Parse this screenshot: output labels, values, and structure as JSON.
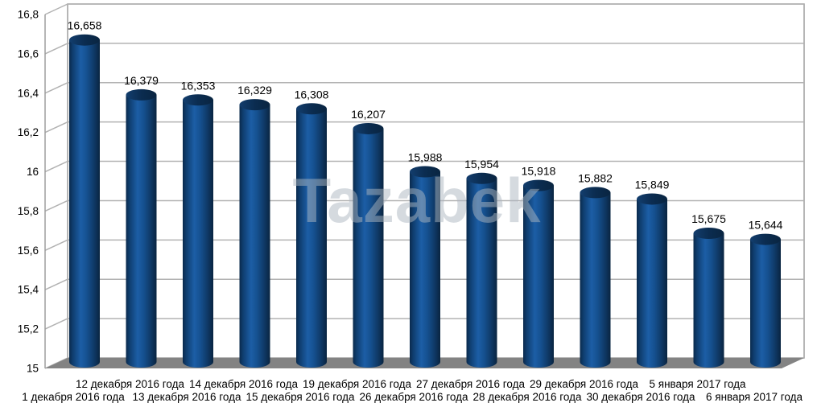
{
  "watermark": {
    "text": "Tazabek",
    "color": "#abb6c0"
  },
  "chart_data": {
    "type": "bar",
    "subtype": "3d-cylinder",
    "title": "",
    "xlabel": "",
    "ylabel": "",
    "ylim": [
      15,
      16.8
    ],
    "grid": true,
    "legend": "none",
    "categories": [
      "1 декабря 2016 года",
      "12 декабря 2016 года",
      "13 декабря 2016 года",
      "14 декабря 2016 года",
      "15 декабря 2016 года",
      "19 декабря 2016 года",
      "26 декабря 2016 года",
      "27 декабря 2016 года",
      "28 декабря 2016 года",
      "29 декабря 2016 года",
      "30 декабря 2016 года",
      "5 января 2017 года",
      "6 января 2017 года"
    ],
    "values": [
      16.658,
      16.379,
      16.353,
      16.329,
      16.308,
      16.207,
      15.988,
      15.954,
      15.918,
      15.882,
      15.849,
      15.675,
      15.644
    ],
    "data_labels": [
      "16,658",
      "16,379",
      "16,353",
      "16,329",
      "16,308",
      "16,207",
      "15,988",
      "15,954",
      "15,918",
      "15,882",
      "15,849",
      "15,675",
      "15,644"
    ],
    "y_ticks": [
      "16,8",
      "16,6",
      "16,4",
      "16,2",
      "16",
      "15,8",
      "15,6",
      "15,4",
      "15,2",
      "15"
    ],
    "colors": {
      "bar_main": "#15508f",
      "bar_light": "#1c5ea6",
      "bar_dark": "#092440",
      "cap_dark": "#0b2c50",
      "floor": "#838383",
      "gridline": "#b2b2b2",
      "frame": "#9d9d9d",
      "label_text": "#000000"
    }
  }
}
